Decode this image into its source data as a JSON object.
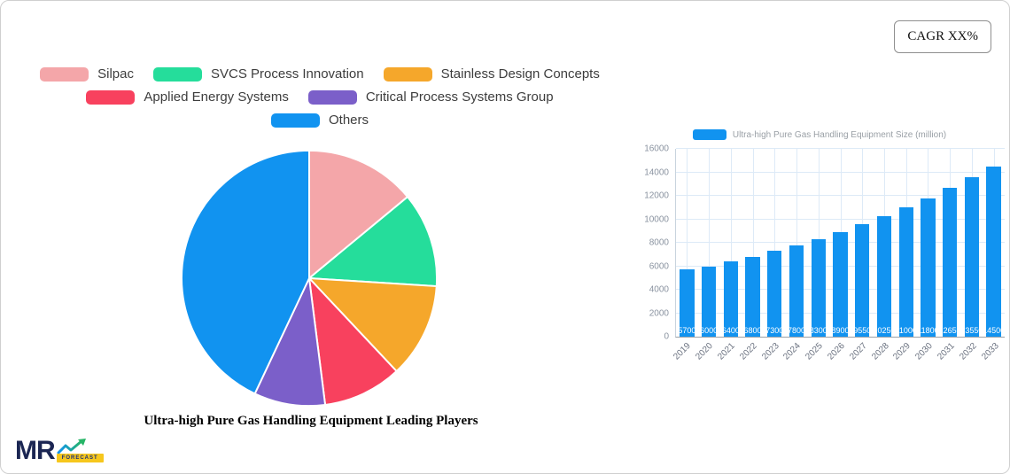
{
  "cagr_badge": "CAGR XX%",
  "logo": {
    "text": "MR",
    "badge": "FORECAST"
  },
  "chart_data": [
    {
      "type": "pie",
      "title": "Ultra-high Pure Gas Handling Equipment Leading Players",
      "labels": [
        "Silpac",
        "SVCS Process Innovation",
        "Stainless Design Concepts",
        "Applied Energy Systems",
        "Critical Process Systems Group",
        "Others"
      ],
      "values": [
        14,
        12,
        12,
        10,
        9,
        43
      ],
      "colors": [
        "#f4a6a9",
        "#25dd9b",
        "#f5a72b",
        "#f8415e",
        "#7b5fc9",
        "#1193f0"
      ],
      "legend_position": "top",
      "legend_rows": [
        [
          0,
          1,
          2
        ],
        [
          3,
          4
        ],
        [
          5
        ]
      ],
      "start_angle_deg": -90,
      "direction": "clockwise"
    },
    {
      "type": "bar",
      "legend": "Ultra-high Pure Gas Handling Equipment Size (million)",
      "categories": [
        "2019",
        "2020",
        "2021",
        "2022",
        "2023",
        "2024",
        "2025",
        "2026",
        "2027",
        "2028",
        "2029",
        "2030",
        "2031",
        "2032",
        "2033"
      ],
      "values": [
        5700,
        6000,
        6400,
        6800,
        7300,
        7800,
        8300,
        8900,
        9550,
        10250,
        11000,
        11800,
        12650,
        13550,
        14500
      ],
      "bar_color": "#1193f0",
      "ylim": [
        0,
        16000
      ],
      "ytick_step": 2000,
      "grid": true,
      "value_label_position": "inside-bottom"
    }
  ]
}
